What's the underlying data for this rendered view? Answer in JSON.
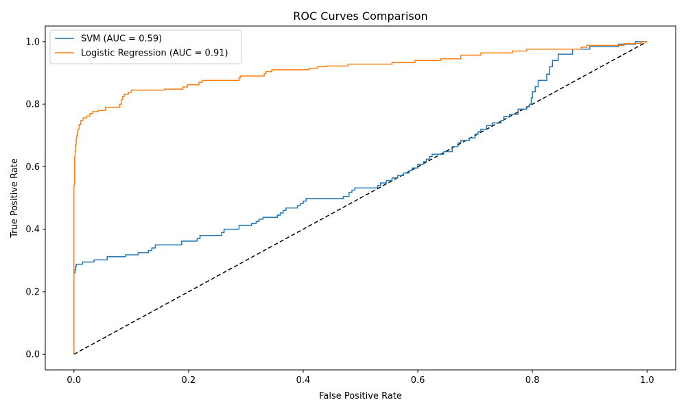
{
  "chart_data": {
    "type": "line",
    "title": "ROC Curves Comparison",
    "xlabel": "False Positive Rate",
    "ylabel": "True Positive Rate",
    "xlim": [
      -0.05,
      1.05
    ],
    "ylim": [
      -0.05,
      1.05
    ],
    "xticks": [
      0.0,
      0.2,
      0.4,
      0.6,
      0.8,
      1.0
    ],
    "yticks": [
      0.0,
      0.2,
      0.4,
      0.6,
      0.8,
      1.0
    ],
    "xtick_labels": [
      "0.0",
      "0.2",
      "0.4",
      "0.6",
      "0.8",
      "1.0"
    ],
    "ytick_labels": [
      "0.0",
      "0.2",
      "0.4",
      "0.6",
      "0.8",
      "1.0"
    ],
    "grid": false,
    "legend_position": "upper-left",
    "series": [
      {
        "name": "SVM (AUC = 0.59)",
        "color": "#1f77b4",
        "style": "step",
        "x": [
          0.0,
          0.0,
          0.002,
          0.003,
          0.004,
          0.015,
          0.035,
          0.058,
          0.09,
          0.112,
          0.13,
          0.136,
          0.142,
          0.188,
          0.215,
          0.22,
          0.258,
          0.262,
          0.288,
          0.31,
          0.318,
          0.323,
          0.33,
          0.355,
          0.36,
          0.365,
          0.37,
          0.39,
          0.395,
          0.4,
          0.405,
          0.47,
          0.48,
          0.485,
          0.49,
          0.53,
          0.535,
          0.545,
          0.555,
          0.565,
          0.575,
          0.585,
          0.59,
          0.6,
          0.61,
          0.615,
          0.62,
          0.625,
          0.645,
          0.66,
          0.67,
          0.675,
          0.69,
          0.7,
          0.705,
          0.71,
          0.72,
          0.73,
          0.745,
          0.75,
          0.76,
          0.775,
          0.79,
          0.795,
          0.798,
          0.8,
          0.805,
          0.81,
          0.825,
          0.83,
          0.835,
          0.845,
          0.87,
          0.9,
          0.95,
          0.98,
          1.0
        ],
        "y": [
          0.0,
          0.26,
          0.27,
          0.28,
          0.288,
          0.295,
          0.302,
          0.312,
          0.318,
          0.325,
          0.332,
          0.34,
          0.35,
          0.362,
          0.37,
          0.38,
          0.39,
          0.4,
          0.412,
          0.418,
          0.425,
          0.432,
          0.438,
          0.445,
          0.452,
          0.46,
          0.468,
          0.475,
          0.482,
          0.49,
          0.498,
          0.505,
          0.518,
          0.525,
          0.532,
          0.54,
          0.548,
          0.556,
          0.564,
          0.572,
          0.58,
          0.588,
          0.596,
          0.608,
          0.616,
          0.624,
          0.632,
          0.64,
          0.648,
          0.664,
          0.676,
          0.684,
          0.692,
          0.704,
          0.712,
          0.72,
          0.732,
          0.74,
          0.748,
          0.76,
          0.768,
          0.784,
          0.792,
          0.8,
          0.82,
          0.84,
          0.856,
          0.876,
          0.896,
          0.92,
          0.94,
          0.96,
          0.976,
          0.984,
          0.992,
          1.0,
          1.0
        ]
      },
      {
        "name": "Logistic Regression (AUC = 0.91)",
        "color": "#ff7f0e",
        "style": "step",
        "x": [
          0.0,
          0.0,
          0.001,
          0.002,
          0.003,
          0.004,
          0.005,
          0.006,
          0.007,
          0.009,
          0.012,
          0.016,
          0.022,
          0.028,
          0.033,
          0.042,
          0.055,
          0.08,
          0.083,
          0.085,
          0.088,
          0.095,
          0.1,
          0.158,
          0.19,
          0.198,
          0.218,
          0.224,
          0.288,
          0.29,
          0.332,
          0.335,
          0.345,
          0.41,
          0.425,
          0.44,
          0.478,
          0.555,
          0.595,
          0.64,
          0.675,
          0.71,
          0.765,
          0.79,
          0.885,
          0.895,
          0.96,
          0.99,
          1.0
        ],
        "y": [
          0.0,
          0.54,
          0.63,
          0.65,
          0.67,
          0.69,
          0.7,
          0.71,
          0.72,
          0.735,
          0.748,
          0.756,
          0.762,
          0.77,
          0.776,
          0.78,
          0.79,
          0.8,
          0.815,
          0.825,
          0.832,
          0.838,
          0.845,
          0.848,
          0.855,
          0.862,
          0.87,
          0.876,
          0.884,
          0.89,
          0.898,
          0.904,
          0.91,
          0.915,
          0.92,
          0.922,
          0.928,
          0.933,
          0.94,
          0.945,
          0.957,
          0.964,
          0.97,
          0.976,
          0.982,
          0.988,
          0.994,
          1.0,
          1.0
        ]
      },
      {
        "name": "",
        "color": "#000000",
        "style": "dashed",
        "x": [
          0.0,
          1.0
        ],
        "y": [
          0.0,
          1.0
        ]
      }
    ]
  }
}
